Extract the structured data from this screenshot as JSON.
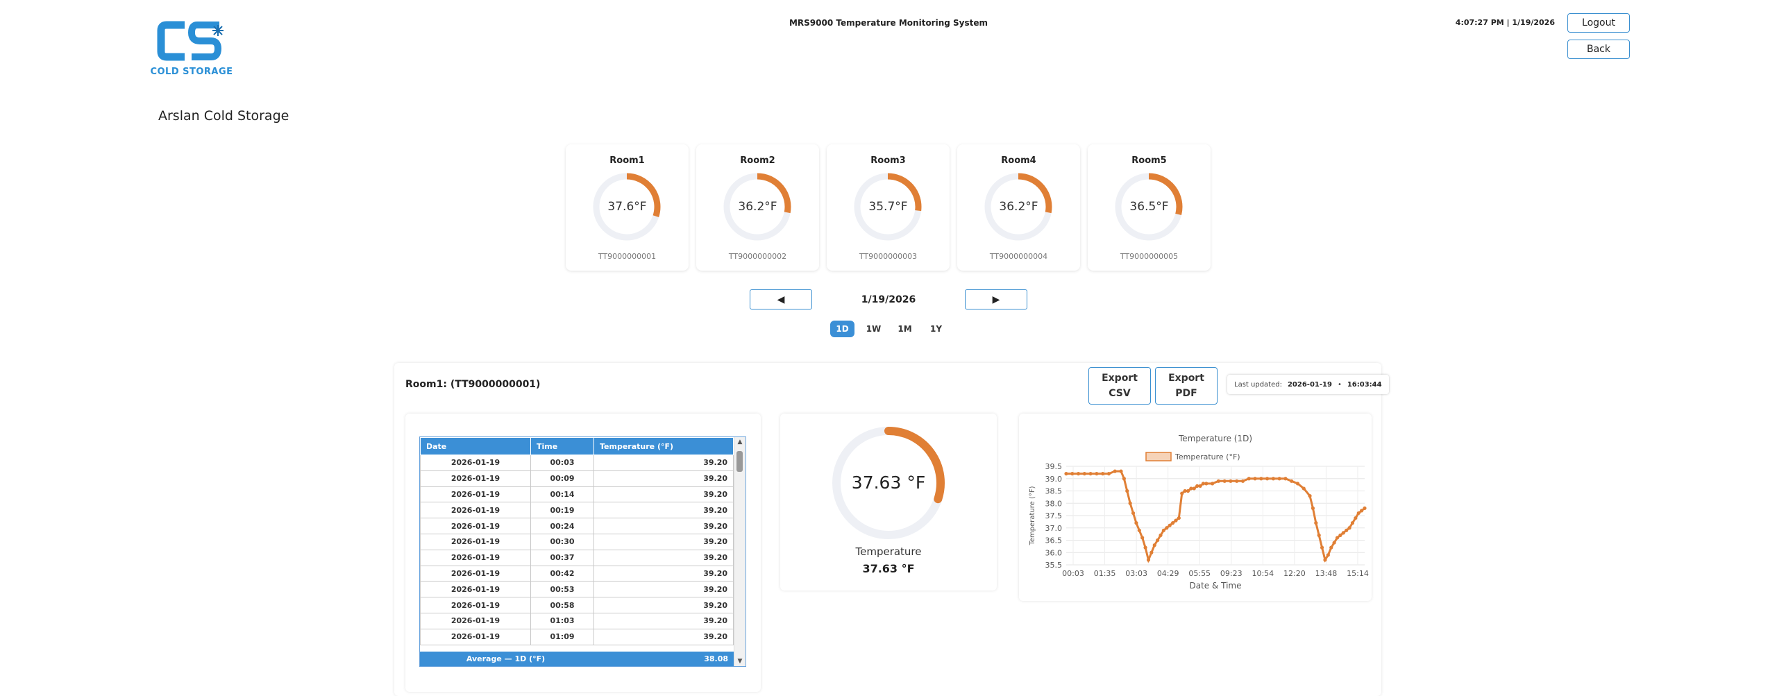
{
  "header": {
    "logo_text": "COLD STORAGE",
    "logo_letters": "CS",
    "system_title": "MRS9000 Temperature Monitoring System",
    "clock": "4:07:27 PM | 1/19/2026",
    "logout_label": "Logout",
    "back_label": "Back"
  },
  "site_title": "Arslan Cold Storage",
  "rooms": [
    {
      "name": "Room1",
      "value": "37.6°F",
      "serial": "TT9000000001",
      "fill": 0.3
    },
    {
      "name": "Room2",
      "value": "36.2°F",
      "serial": "TT9000000002",
      "fill": 0.28
    },
    {
      "name": "Room3",
      "value": "35.7°F",
      "serial": "TT9000000003",
      "fill": 0.27
    },
    {
      "name": "Room4",
      "value": "36.2°F",
      "serial": "TT9000000004",
      "fill": 0.28
    },
    {
      "name": "Room5",
      "value": "36.5°F",
      "serial": "TT9000000005",
      "fill": 0.29
    }
  ],
  "nav": {
    "prev_icon": "triangle-left-icon",
    "next_icon": "triangle-right-icon",
    "date": "1/19/2026",
    "ranges": [
      "1D",
      "1W",
      "1M",
      "1Y"
    ],
    "active_range": "1D"
  },
  "detail": {
    "room_label": "Room1: (TT9000000001)",
    "export_csv": [
      "Export",
      "CSV"
    ],
    "export_pdf": [
      "Export",
      "PDF"
    ],
    "last_updated_label": "Last updated:",
    "last_updated_date": "2026-01-19",
    "last_updated_sep": "•",
    "last_updated_time": "16:03:44"
  },
  "table": {
    "headers": [
      "Date",
      "Time",
      "Temperature (°F)"
    ],
    "rows": [
      [
        "2026-01-19",
        "00:03",
        "39.20"
      ],
      [
        "2026-01-19",
        "00:09",
        "39.20"
      ],
      [
        "2026-01-19",
        "00:14",
        "39.20"
      ],
      [
        "2026-01-19",
        "00:19",
        "39.20"
      ],
      [
        "2026-01-19",
        "00:24",
        "39.20"
      ],
      [
        "2026-01-19",
        "00:30",
        "39.20"
      ],
      [
        "2026-01-19",
        "00:37",
        "39.20"
      ],
      [
        "2026-01-19",
        "00:42",
        "39.20"
      ],
      [
        "2026-01-19",
        "00:53",
        "39.20"
      ],
      [
        "2026-01-19",
        "00:58",
        "39.20"
      ],
      [
        "2026-01-19",
        "01:03",
        "39.20"
      ],
      [
        "2026-01-19",
        "01:09",
        "39.20"
      ]
    ],
    "footer_label": "Average — 1D (°F)",
    "footer_value": "38.08"
  },
  "gauge": {
    "value": "37.63 °F",
    "label": "Temperature",
    "value_small": "37.63 °F",
    "fill": 0.3
  },
  "colors": {
    "accent": "#e07f35",
    "primary": "#3b8fd6",
    "track": "#eef0f5"
  },
  "chart_data": {
    "type": "line",
    "title": "Temperature (1D)",
    "series": [
      {
        "name": "Temperature (°F)"
      }
    ],
    "xlabel": "Date & Time",
    "ylabel": "Temperature (°F)",
    "ylim": [
      35.5,
      39.5
    ],
    "yticks": [
      "35.5",
      "36.0",
      "36.5",
      "37.0",
      "37.5",
      "38.0",
      "38.5",
      "39.0",
      "39.5"
    ],
    "xticks": [
      "00:03",
      "01:35",
      "03:03",
      "04:29",
      "05:55",
      "09:23",
      "10:54",
      "12:20",
      "13:48",
      "15:14"
    ],
    "x": [
      0,
      0.2,
      0.4,
      0.6,
      0.8,
      1.0,
      1.2,
      1.4,
      1.6,
      1.8,
      1.9,
      2.0,
      2.1,
      2.2,
      2.3,
      2.4,
      2.5,
      2.6,
      2.7,
      2.8,
      2.9,
      3.0,
      3.1,
      3.2,
      3.3,
      3.4,
      3.5,
      3.6,
      3.7,
      3.8,
      3.9,
      4.0,
      4.1,
      4.2,
      4.3,
      4.4,
      4.5,
      4.6,
      4.8,
      5.0,
      5.2,
      5.4,
      5.6,
      5.8,
      6.0,
      6.2,
      6.4,
      6.6,
      6.8,
      7.0,
      7.2,
      7.4,
      7.6,
      7.8,
      8.0,
      8.1,
      8.2,
      8.3,
      8.4,
      8.5,
      8.6,
      8.7,
      8.8,
      8.9,
      9.0,
      9.1,
      9.2,
      9.3,
      9.4,
      9.5,
      9.6,
      9.7,
      9.8
    ],
    "values": [
      39.2,
      39.2,
      39.2,
      39.2,
      39.2,
      39.2,
      39.2,
      39.2,
      39.3,
      39.3,
      39.0,
      38.5,
      38.0,
      37.6,
      37.2,
      36.9,
      36.6,
      36.2,
      35.7,
      36.0,
      36.3,
      36.5,
      36.7,
      36.9,
      37.0,
      37.1,
      37.2,
      37.3,
      37.4,
      38.4,
      38.5,
      38.5,
      38.6,
      38.6,
      38.7,
      38.7,
      38.8,
      38.8,
      38.8,
      38.9,
      38.9,
      38.9,
      38.9,
      38.9,
      39.0,
      39.0,
      39.0,
      39.0,
      39.0,
      39.0,
      39.0,
      38.9,
      38.8,
      38.6,
      38.3,
      37.8,
      37.2,
      36.7,
      36.2,
      35.7,
      35.9,
      36.2,
      36.4,
      36.6,
      36.7,
      36.8,
      36.9,
      37.0,
      37.2,
      37.4,
      37.6,
      37.7,
      37.8
    ],
    "grid": true,
    "legend": "top"
  }
}
